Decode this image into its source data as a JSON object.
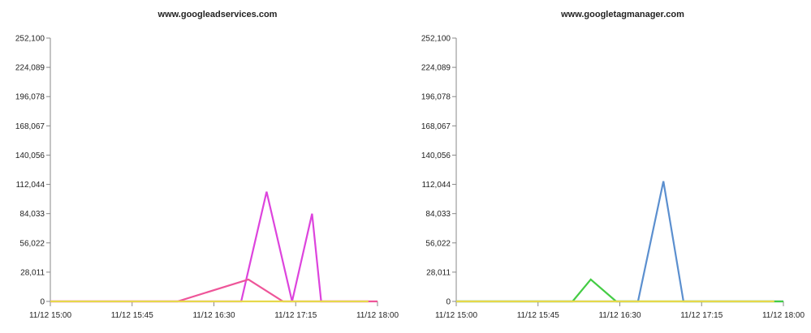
{
  "chart_data": [
    {
      "type": "line",
      "title": "www.googleadservices.com",
      "x_ticks": [
        "11/12 15:00",
        "11/12 15:45",
        "11/12 16:30",
        "11/12 17:15",
        "11/12 18:00"
      ],
      "y_ticks": [
        "0",
        "28,011",
        "56,022",
        "84,033",
        "112,044",
        "140,056",
        "168,067",
        "196,078",
        "224,089",
        "252,100"
      ],
      "xlim_minutes": [
        0,
        180
      ],
      "ylim": [
        0,
        252100
      ],
      "grid": false,
      "series": [
        {
          "color": "#dd44dd",
          "x_minutes": [
            0,
            105,
            119,
            133,
            144,
            149,
            175
          ],
          "values": [
            0,
            0,
            105000,
            0,
            84000,
            0,
            0
          ]
        },
        {
          "color": "#ee5599",
          "x_minutes": [
            0,
            70,
            109,
            128,
            180
          ],
          "values": [
            0,
            0,
            21000,
            0,
            0
          ]
        },
        {
          "color": "#e6d84a",
          "x_minutes": [
            0,
            175
          ],
          "values": [
            0,
            0
          ]
        }
      ]
    },
    {
      "type": "line",
      "title": "www.googletagmanager.com",
      "x_ticks": [
        "11/12 15:00",
        "11/12 15:45",
        "11/12 16:30",
        "11/12 17:15",
        "11/12 18:00"
      ],
      "y_ticks": [
        "0",
        "28,011",
        "56,022",
        "84,033",
        "112,044",
        "140,056",
        "168,067",
        "196,078",
        "224,089",
        "252,100"
      ],
      "xlim_minutes": [
        0,
        180
      ],
      "ylim": [
        0,
        252100
      ],
      "grid": false,
      "series": [
        {
          "color": "#5b8fcf",
          "x_minutes": [
            0,
            100,
            114,
            125,
            180
          ],
          "values": [
            0,
            0,
            115000,
            0,
            0
          ]
        },
        {
          "color": "#44cc44",
          "x_minutes": [
            0,
            64,
            74,
            88,
            180
          ],
          "values": [
            0,
            0,
            21000,
            0,
            0
          ]
        },
        {
          "color": "#e6d84a",
          "x_minutes": [
            0,
            175
          ],
          "values": [
            0,
            0
          ]
        }
      ]
    }
  ]
}
